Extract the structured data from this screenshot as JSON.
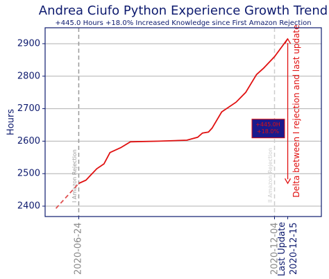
{
  "chart_data": {
    "type": "line",
    "title": "Andrea Ciufo Python Experience Growth Trend",
    "subtitle": "+445.0 Hours +18.0% Increased Knowledge since First Amazon Rejection",
    "y_label": "Hours",
    "xlim": [
      "2020-05-27",
      "2021-01-12"
    ],
    "ylim": [
      2368,
      2949
    ],
    "yticks": [
      2400,
      2500,
      2600,
      2700,
      2800,
      2900
    ],
    "xticks": [
      {
        "value": "2020-06-24",
        "label": "2020-06-24"
      },
      {
        "value": "2020-12-04",
        "label": "2020-12-04"
      },
      {
        "value": "2020-12-15",
        "label": "Last Update\n2020-12-15"
      }
    ],
    "grid": "y",
    "series": [
      {
        "color": "#e05050",
        "dashed": true,
        "x": [
          "2020-06-05",
          "2020-06-24"
        ],
        "values": [
          2393,
          2470
        ]
      },
      {
        "color": "#e01010",
        "dashed": false,
        "x": [
          "2020-06-24",
          "2020-06-30",
          "2020-07-09",
          "2020-07-15",
          "2020-07-20",
          "2020-07-29",
          "2020-08-06",
          "2020-08-30",
          "2020-09-22",
          "2020-10-01",
          "2020-10-05",
          "2020-10-10",
          "2020-10-13",
          "2020-10-21",
          "2020-11-02",
          "2020-11-10",
          "2020-11-19",
          "2020-11-25",
          "2020-12-04",
          "2020-12-10",
          "2020-12-15"
        ],
        "values": [
          2470,
          2480,
          2515,
          2530,
          2565,
          2580,
          2598,
          2600,
          2603,
          2612,
          2625,
          2628,
          2640,
          2690,
          2720,
          2750,
          2805,
          2825,
          2860,
          2890,
          2915
        ]
      }
    ],
    "annotations": {
      "vlines": [
        {
          "x": "2020-06-24",
          "label": "I Amazon Rejection",
          "color": "#999999"
        },
        {
          "x": "2020-12-04",
          "label": "II Amazon Rejection",
          "color": "#cccccc"
        }
      ],
      "delta_arrow": {
        "x": "2020-12-15",
        "from": 2470,
        "to": 2915,
        "color": "#e01010",
        "label": "Delta between I rejection and last update"
      },
      "box": {
        "lines": [
          "+445.0H",
          "+18.0%"
        ],
        "value": 2640
      }
    }
  }
}
